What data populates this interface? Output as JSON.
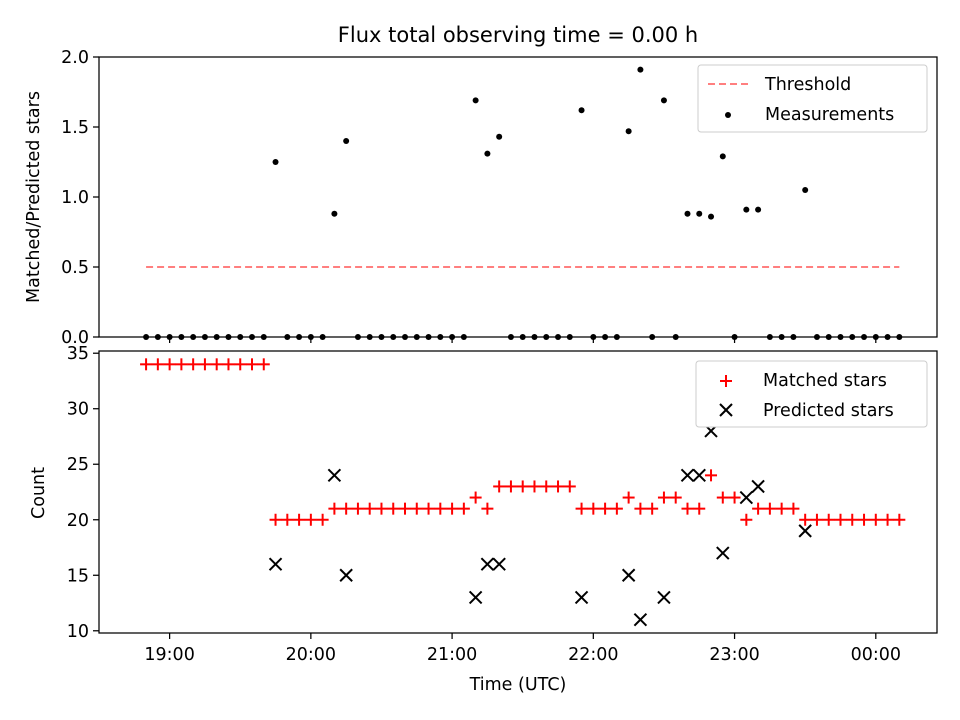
{
  "chart_data": [
    {
      "type": "scatter",
      "title": "Flux total observing time = 0.00 h",
      "xlabel": "",
      "ylabel": "Matched/Predicted stars",
      "xlim": [
        "18:30",
        "00:26"
      ],
      "ylim": [
        0,
        2.0
      ],
      "yticks": [
        "0.0",
        "0.5",
        "1.0",
        "1.5",
        "2.0"
      ],
      "grid": false,
      "legend_position": "top-right",
      "series": [
        {
          "name": "Threshold",
          "style": "dashed-line",
          "color": "#ff7f7f",
          "x": [
            "18:50",
            "00:10"
          ],
          "y": [
            0.5,
            0.5
          ]
        },
        {
          "name": "Measurements",
          "style": "dot",
          "color": "#000000",
          "points": [
            [
              "18:50",
              0.0
            ],
            [
              "18:55",
              0.0
            ],
            [
              "19:00",
              0.0
            ],
            [
              "19:05",
              0.0
            ],
            [
              "19:10",
              0.0
            ],
            [
              "19:15",
              0.0
            ],
            [
              "19:20",
              0.0
            ],
            [
              "19:25",
              0.0
            ],
            [
              "19:30",
              0.0
            ],
            [
              "19:35",
              0.0
            ],
            [
              "19:40",
              0.0
            ],
            [
              "19:45",
              1.25
            ],
            [
              "19:50",
              0.0
            ],
            [
              "19:55",
              0.0
            ],
            [
              "20:00",
              0.0
            ],
            [
              "20:05",
              0.0
            ],
            [
              "20:10",
              0.88
            ],
            [
              "20:15",
              1.4
            ],
            [
              "20:20",
              0.0
            ],
            [
              "20:25",
              0.0
            ],
            [
              "20:30",
              0.0
            ],
            [
              "20:35",
              0.0
            ],
            [
              "20:40",
              0.0
            ],
            [
              "20:45",
              0.0
            ],
            [
              "20:50",
              0.0
            ],
            [
              "20:55",
              0.0
            ],
            [
              "21:00",
              0.0
            ],
            [
              "21:05",
              0.0
            ],
            [
              "21:10",
              1.69
            ],
            [
              "21:15",
              1.31
            ],
            [
              "21:20",
              1.43
            ],
            [
              "21:25",
              0.0
            ],
            [
              "21:30",
              0.0
            ],
            [
              "21:35",
              0.0
            ],
            [
              "21:40",
              0.0
            ],
            [
              "21:45",
              0.0
            ],
            [
              "21:50",
              0.0
            ],
            [
              "21:55",
              1.62
            ],
            [
              "22:00",
              0.0
            ],
            [
              "22:05",
              0.0
            ],
            [
              "22:10",
              0.0
            ],
            [
              "22:15",
              1.47
            ],
            [
              "22:20",
              1.91
            ],
            [
              "22:25",
              0.0
            ],
            [
              "22:30",
              1.69
            ],
            [
              "22:35",
              0.0
            ],
            [
              "22:40",
              0.88
            ],
            [
              "22:45",
              0.88
            ],
            [
              "22:50",
              0.86
            ],
            [
              "22:55",
              1.29
            ],
            [
              "23:00",
              0.0
            ],
            [
              "23:05",
              0.91
            ],
            [
              "23:10",
              0.91
            ],
            [
              "23:15",
              0.0
            ],
            [
              "23:20",
              0.0
            ],
            [
              "23:25",
              0.0
            ],
            [
              "23:30",
              1.05
            ],
            [
              "23:35",
              0.0
            ],
            [
              "23:40",
              0.0
            ],
            [
              "23:45",
              0.0
            ],
            [
              "23:50",
              0.0
            ],
            [
              "23:55",
              0.0
            ],
            [
              "00:00",
              0.0
            ],
            [
              "00:05",
              0.0
            ],
            [
              "00:10",
              0.0
            ]
          ]
        }
      ]
    },
    {
      "type": "scatter",
      "title": "",
      "xlabel": "Time (UTC)",
      "ylabel": "Count",
      "xlim": [
        "18:30",
        "00:26"
      ],
      "ylim": [
        9.8,
        35.2
      ],
      "xticks": [
        "19:00",
        "20:00",
        "21:00",
        "22:00",
        "23:00",
        "00:00"
      ],
      "yticks": [
        "10",
        "15",
        "20",
        "25",
        "30",
        "35"
      ],
      "grid": false,
      "legend_position": "top-right",
      "series": [
        {
          "name": "Matched stars",
          "marker": "plus",
          "color": "#ff0000",
          "points": [
            [
              "18:50",
              34
            ],
            [
              "18:55",
              34
            ],
            [
              "19:00",
              34
            ],
            [
              "19:05",
              34
            ],
            [
              "19:10",
              34
            ],
            [
              "19:15",
              34
            ],
            [
              "19:20",
              34
            ],
            [
              "19:25",
              34
            ],
            [
              "19:30",
              34
            ],
            [
              "19:35",
              34
            ],
            [
              "19:40",
              34
            ],
            [
              "19:45",
              20
            ],
            [
              "19:50",
              20
            ],
            [
              "19:55",
              20
            ],
            [
              "20:00",
              20
            ],
            [
              "20:05",
              20
            ],
            [
              "20:10",
              21
            ],
            [
              "20:15",
              21
            ],
            [
              "20:20",
              21
            ],
            [
              "20:25",
              21
            ],
            [
              "20:30",
              21
            ],
            [
              "20:35",
              21
            ],
            [
              "20:40",
              21
            ],
            [
              "20:45",
              21
            ],
            [
              "20:50",
              21
            ],
            [
              "20:55",
              21
            ],
            [
              "21:00",
              21
            ],
            [
              "21:05",
              21
            ],
            [
              "21:10",
              22
            ],
            [
              "21:15",
              21
            ],
            [
              "21:20",
              23
            ],
            [
              "21:25",
              23
            ],
            [
              "21:30",
              23
            ],
            [
              "21:35",
              23
            ],
            [
              "21:40",
              23
            ],
            [
              "21:45",
              23
            ],
            [
              "21:50",
              23
            ],
            [
              "21:55",
              21
            ],
            [
              "22:00",
              21
            ],
            [
              "22:05",
              21
            ],
            [
              "22:10",
              21
            ],
            [
              "22:15",
              22
            ],
            [
              "22:20",
              21
            ],
            [
              "22:25",
              21
            ],
            [
              "22:30",
              22
            ],
            [
              "22:35",
              22
            ],
            [
              "22:40",
              21
            ],
            [
              "22:45",
              21
            ],
            [
              "22:50",
              24
            ],
            [
              "22:55",
              22
            ],
            [
              "23:00",
              22
            ],
            [
              "23:05",
              20
            ],
            [
              "23:10",
              21
            ],
            [
              "23:15",
              21
            ],
            [
              "23:20",
              21
            ],
            [
              "23:25",
              21
            ],
            [
              "23:30",
              20
            ],
            [
              "23:35",
              20
            ],
            [
              "23:40",
              20
            ],
            [
              "23:45",
              20
            ],
            [
              "23:50",
              20
            ],
            [
              "23:55",
              20
            ],
            [
              "00:00",
              20
            ],
            [
              "00:05",
              20
            ],
            [
              "00:10",
              20
            ]
          ]
        },
        {
          "name": "Predicted stars",
          "marker": "x",
          "color": "#000000",
          "points": [
            [
              "19:45",
              16
            ],
            [
              "20:10",
              24
            ],
            [
              "20:15",
              15
            ],
            [
              "21:10",
              13
            ],
            [
              "21:15",
              16
            ],
            [
              "21:20",
              16
            ],
            [
              "21:55",
              13
            ],
            [
              "22:15",
              15
            ],
            [
              "22:20",
              11
            ],
            [
              "22:30",
              13
            ],
            [
              "22:40",
              24
            ],
            [
              "22:45",
              24
            ],
            [
              "22:50",
              28
            ],
            [
              "22:55",
              17
            ],
            [
              "23:05",
              22
            ],
            [
              "23:10",
              23
            ],
            [
              "23:30",
              19
            ]
          ]
        }
      ]
    }
  ]
}
